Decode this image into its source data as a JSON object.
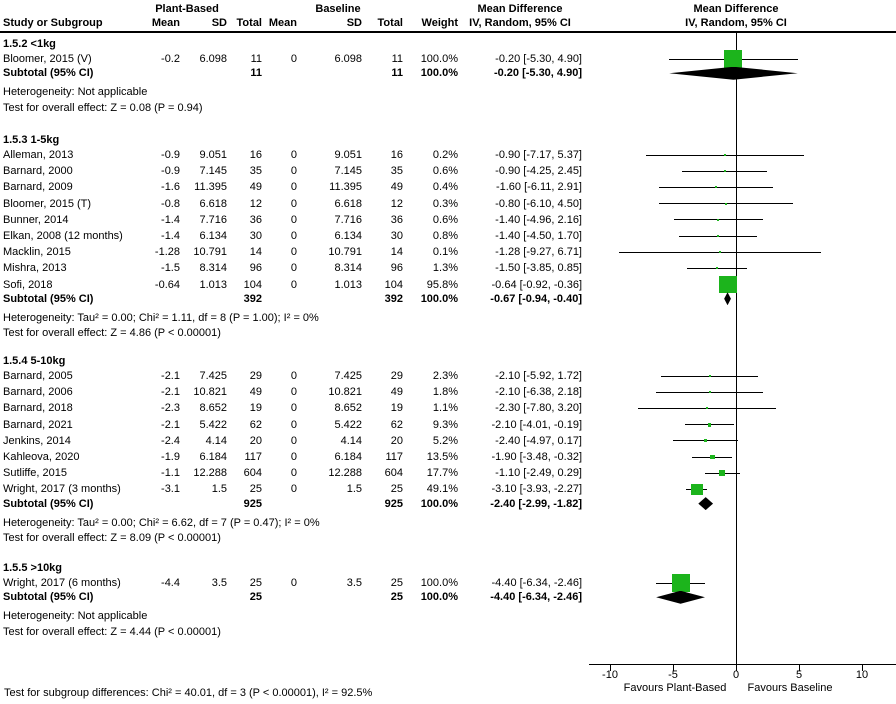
{
  "header": {
    "col_study": "Study or Subgroup",
    "group1": "Plant-Based",
    "group2": "Baseline",
    "col_mean": "Mean",
    "col_sd": "SD",
    "col_total": "Total",
    "col_weight": "Weight",
    "col_ci": "IV, Random, 95% CI",
    "mean_diff": "Mean Difference",
    "plot_title_line1": "Mean Difference",
    "plot_title_line2": "IV, Random, 95% CI"
  },
  "footer": "Test for subgroup differences: Chi² = 40.01, df = 3 (P < 0.00001), I² = 92.5%",
  "colors": {
    "marker_green": "#1CB41C",
    "diamond_black": "#000000",
    "text": "#000000"
  },
  "chart_data": {
    "type": "forest",
    "effect_measure": "Mean Difference, IV, Random, 95% CI",
    "axis_ticks": [
      -10,
      -5,
      0,
      5,
      10
    ],
    "xlim": [
      -11.6,
      12.6
    ],
    "xlabel_left": "Favours Plant-Based",
    "xlabel_right": "Favours Baseline",
    "groups": [
      {
        "label": "1.5.2 <1kg",
        "studies": [
          {
            "name": "Bloomer, 2015 (V)",
            "m1": "-0.2",
            "sd1": "6.098",
            "n1": "11",
            "m2": "0",
            "sd2": "6.098",
            "n2": "11",
            "w": "100.0%",
            "ci": "-0.20 [-5.30, 4.90]",
            "est": -0.2,
            "lo": -5.3,
            "hi": 4.9,
            "wp": 100.0
          }
        ],
        "subtotal": {
          "label": "Subtotal (95% CI)",
          "n1": "11",
          "n2": "11",
          "w": "100.0%",
          "ci": "-0.20 [-5.30, 4.90]",
          "est": -0.2,
          "lo": -5.3,
          "hi": 4.9
        },
        "heterogeneity": "Heterogeneity: Not applicable",
        "overall": "Test for overall effect: Z = 0.08 (P = 0.94)"
      },
      {
        "label": "1.5.3 1-5kg",
        "studies": [
          {
            "name": "Alleman, 2013",
            "m1": "-0.9",
            "sd1": "9.051",
            "n1": "16",
            "m2": "0",
            "sd2": "9.051",
            "n2": "16",
            "w": "0.2%",
            "ci": "-0.90 [-7.17, 5.37]",
            "est": -0.9,
            "lo": -7.17,
            "hi": 5.37,
            "wp": 0.2
          },
          {
            "name": "Barnard, 2000",
            "m1": "-0.9",
            "sd1": "7.145",
            "n1": "35",
            "m2": "0",
            "sd2": "7.145",
            "n2": "35",
            "w": "0.6%",
            "ci": "-0.90 [-4.25, 2.45]",
            "est": -0.9,
            "lo": -4.25,
            "hi": 2.45,
            "wp": 0.6
          },
          {
            "name": "Barnard, 2009",
            "m1": "-1.6",
            "sd1": "11.395",
            "n1": "49",
            "m2": "0",
            "sd2": "11.395",
            "n2": "49",
            "w": "0.4%",
            "ci": "-1.60 [-6.11, 2.91]",
            "est": -1.6,
            "lo": -6.11,
            "hi": 2.91,
            "wp": 0.4
          },
          {
            "name": "Bloomer, 2015 (T)",
            "m1": "-0.8",
            "sd1": "6.618",
            "n1": "12",
            "m2": "0",
            "sd2": "6.618",
            "n2": "12",
            "w": "0.3%",
            "ci": "-0.80 [-6.10, 4.50]",
            "est": -0.8,
            "lo": -6.1,
            "hi": 4.5,
            "wp": 0.3
          },
          {
            "name": "Bunner, 2014",
            "m1": "-1.4",
            "sd1": "7.716",
            "n1": "36",
            "m2": "0",
            "sd2": "7.716",
            "n2": "36",
            "w": "0.6%",
            "ci": "-1.40 [-4.96, 2.16]",
            "est": -1.4,
            "lo": -4.96,
            "hi": 2.16,
            "wp": 0.6
          },
          {
            "name": "Elkan, 2008 (12 months)",
            "m1": "-1.4",
            "sd1": "6.134",
            "n1": "30",
            "m2": "0",
            "sd2": "6.134",
            "n2": "30",
            "w": "0.8%",
            "ci": "-1.40 [-4.50, 1.70]",
            "est": -1.4,
            "lo": -4.5,
            "hi": 1.7,
            "wp": 0.8
          },
          {
            "name": "Macklin, 2015",
            "m1": "-1.28",
            "sd1": "10.791",
            "n1": "14",
            "m2": "0",
            "sd2": "10.791",
            "n2": "14",
            "w": "0.1%",
            "ci": "-1.28 [-9.27, 6.71]",
            "est": -1.28,
            "lo": -9.27,
            "hi": 6.71,
            "wp": 0.1
          },
          {
            "name": "Mishra, 2013",
            "m1": "-1.5",
            "sd1": "8.314",
            "n1": "96",
            "m2": "0",
            "sd2": "8.314",
            "n2": "96",
            "w": "1.3%",
            "ci": "-1.50 [-3.85, 0.85]",
            "est": -1.5,
            "lo": -3.85,
            "hi": 0.85,
            "wp": 1.3
          },
          {
            "name": "Sofi, 2018",
            "m1": "-0.64",
            "sd1": "1.013",
            "n1": "104",
            "m2": "0",
            "sd2": "1.013",
            "n2": "104",
            "w": "95.8%",
            "ci": "-0.64 [-0.92, -0.36]",
            "est": -0.64,
            "lo": -0.92,
            "hi": -0.36,
            "wp": 95.8
          }
        ],
        "subtotal": {
          "label": "Subtotal (95% CI)",
          "n1": "392",
          "n2": "392",
          "w": "100.0%",
          "ci": "-0.67 [-0.94, -0.40]",
          "est": -0.67,
          "lo": -0.94,
          "hi": -0.4
        },
        "heterogeneity": "Heterogeneity: Tau² = 0.00; Chi² = 1.11, df = 8 (P = 1.00); I² = 0%",
        "overall": "Test for overall effect: Z = 4.86 (P < 0.00001)"
      },
      {
        "label": "1.5.4 5-10kg",
        "studies": [
          {
            "name": "Barnard, 2005",
            "m1": "-2.1",
            "sd1": "7.425",
            "n1": "29",
            "m2": "0",
            "sd2": "7.425",
            "n2": "29",
            "w": "2.3%",
            "ci": "-2.10 [-5.92, 1.72]",
            "est": -2.1,
            "lo": -5.92,
            "hi": 1.72,
            "wp": 2.3
          },
          {
            "name": "Barnard, 2006",
            "m1": "-2.1",
            "sd1": "10.821",
            "n1": "49",
            "m2": "0",
            "sd2": "10.821",
            "n2": "49",
            "w": "1.8%",
            "ci": "-2.10 [-6.38, 2.18]",
            "est": -2.1,
            "lo": -6.38,
            "hi": 2.18,
            "wp": 1.8
          },
          {
            "name": "Barnard, 2018",
            "m1": "-2.3",
            "sd1": "8.652",
            "n1": "19",
            "m2": "0",
            "sd2": "8.652",
            "n2": "19",
            "w": "1.1%",
            "ci": "-2.30 [-7.80, 3.20]",
            "est": -2.3,
            "lo": -7.8,
            "hi": 3.2,
            "wp": 1.1
          },
          {
            "name": "Barnard, 2021",
            "m1": "-2.1",
            "sd1": "5.422",
            "n1": "62",
            "m2": "0",
            "sd2": "5.422",
            "n2": "62",
            "w": "9.3%",
            "ci": "-2.10 [-4.01, -0.19]",
            "est": -2.1,
            "lo": -4.01,
            "hi": -0.19,
            "wp": 9.3
          },
          {
            "name": "Jenkins, 2014",
            "m1": "-2.4",
            "sd1": "4.14",
            "n1": "20",
            "m2": "0",
            "sd2": "4.14",
            "n2": "20",
            "w": "5.2%",
            "ci": "-2.40 [-4.97, 0.17]",
            "est": -2.4,
            "lo": -4.97,
            "hi": 0.17,
            "wp": 5.2
          },
          {
            "name": "Kahleova, 2020",
            "m1": "-1.9",
            "sd1": "6.184",
            "n1": "117",
            "m2": "0",
            "sd2": "6.184",
            "n2": "117",
            "w": "13.5%",
            "ci": "-1.90 [-3.48, -0.32]",
            "est": -1.9,
            "lo": -3.48,
            "hi": -0.32,
            "wp": 13.5
          },
          {
            "name": "Sutliffe, 2015",
            "m1": "-1.1",
            "sd1": "12.288",
            "n1": "604",
            "m2": "0",
            "sd2": "12.288",
            "n2": "604",
            "w": "17.7%",
            "ci": "-1.10 [-2.49, 0.29]",
            "est": -1.1,
            "lo": -2.49,
            "hi": 0.29,
            "wp": 17.7
          },
          {
            "name": "Wright, 2017 (3 months)",
            "m1": "-3.1",
            "sd1": "1.5",
            "n1": "25",
            "m2": "0",
            "sd2": "1.5",
            "n2": "25",
            "w": "49.1%",
            "ci": "-3.10 [-3.93, -2.27]",
            "est": -3.1,
            "lo": -3.93,
            "hi": -2.27,
            "wp": 49.1
          }
        ],
        "subtotal": {
          "label": "Subtotal (95% CI)",
          "n1": "925",
          "n2": "925",
          "w": "100.0%",
          "ci": "-2.40 [-2.99, -1.82]",
          "est": -2.4,
          "lo": -2.99,
          "hi": -1.82
        },
        "heterogeneity": "Heterogeneity: Tau² = 0.00; Chi² = 6.62, df = 7 (P = 0.47); I² = 0%",
        "overall": "Test for overall effect: Z = 8.09 (P < 0.00001)"
      },
      {
        "label": "1.5.5 >10kg",
        "studies": [
          {
            "name": "Wright, 2017 (6 months)",
            "m1": "-4.4",
            "sd1": "3.5",
            "n1": "25",
            "m2": "0",
            "sd2": "3.5",
            "n2": "25",
            "w": "100.0%",
            "ci": "-4.40 [-6.34, -2.46]",
            "est": -4.4,
            "lo": -6.34,
            "hi": -2.46,
            "wp": 100.0
          }
        ],
        "subtotal": {
          "label": "Subtotal (95% CI)",
          "n1": "25",
          "n2": "25",
          "w": "100.0%",
          "ci": "-4.40 [-6.34, -2.46]",
          "est": -4.4,
          "lo": -6.34,
          "hi": -2.46
        },
        "heterogeneity": "Heterogeneity: Not applicable",
        "overall": "Test for overall effect: Z = 4.44 (P < 0.00001)"
      }
    ]
  }
}
